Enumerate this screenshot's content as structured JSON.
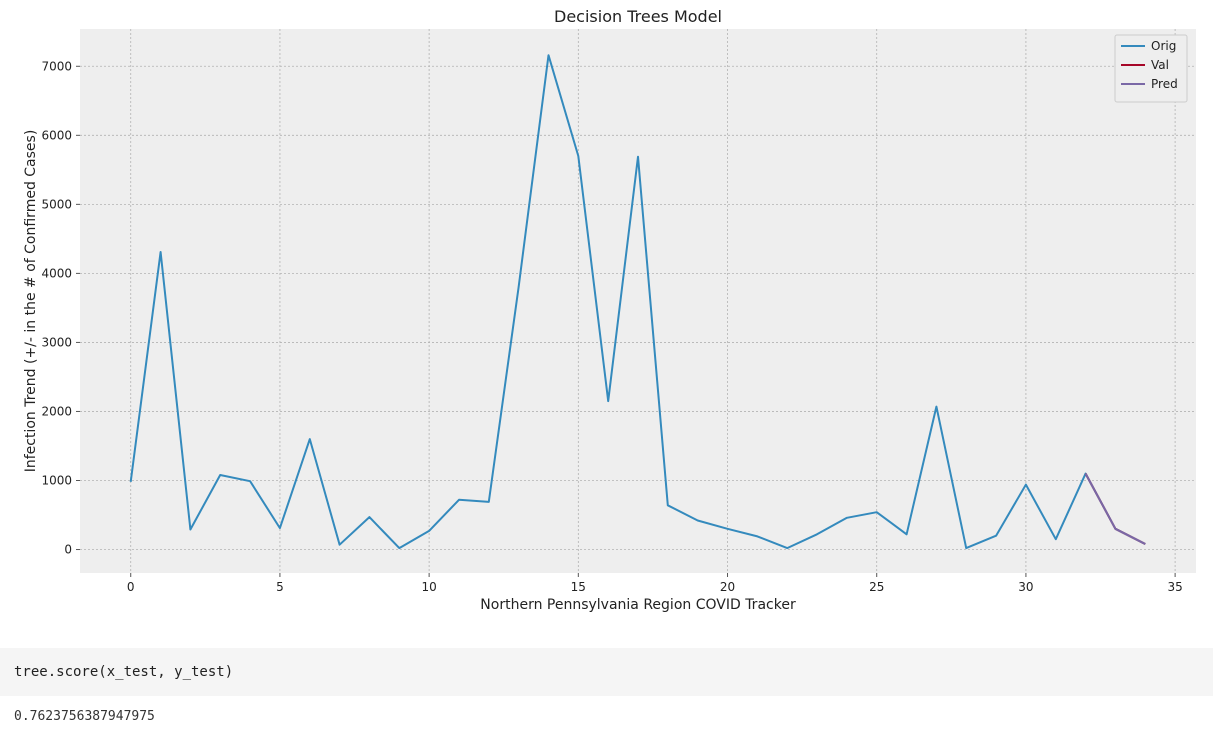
{
  "chart_data": {
    "type": "line",
    "title": "Decision Trees Model",
    "xlabel": "Northern Pennsylvania Region COVID Tracker",
    "ylabel": "Infection Trend (+/- in the # of Confirmed Cases)",
    "xlim": [
      -1.7,
      35.7
    ],
    "ylim": [
      -340,
      7540
    ],
    "xticks": [
      0,
      5,
      10,
      15,
      20,
      25,
      30,
      35
    ],
    "yticks": [
      0,
      1000,
      2000,
      3000,
      4000,
      5000,
      6000,
      7000
    ],
    "grid": true,
    "legend": "top-right",
    "series": [
      {
        "name": "Orig",
        "color": "#348ABD",
        "x": [
          0,
          1,
          2,
          3,
          4,
          5,
          6,
          7,
          8,
          9,
          10,
          11,
          12,
          13,
          14,
          15,
          16,
          17,
          18,
          19,
          20,
          21,
          22,
          23,
          24,
          25,
          26,
          27,
          28,
          29,
          30,
          31,
          32,
          33,
          34
        ],
        "values": [
          980,
          4310,
          290,
          1080,
          990,
          310,
          1600,
          70,
          470,
          20,
          270,
          720,
          690,
          3800,
          7160,
          5700,
          2150,
          5690,
          640,
          420,
          300,
          190,
          20,
          220,
          460,
          540,
          220,
          2070,
          20,
          200,
          940,
          150,
          1100,
          300,
          80
        ]
      },
      {
        "name": "Val",
        "color": "#A60628",
        "x": [
          32,
          33,
          34
        ],
        "values": [
          1100,
          300,
          80
        ]
      },
      {
        "name": "Pred",
        "color": "#7A68A6",
        "x": [
          32,
          33,
          34
        ],
        "values": [
          1100,
          300,
          80
        ]
      }
    ]
  },
  "cells": {
    "code": "tree.score(x_test, y_test)",
    "output": "0.7623756387947975"
  }
}
